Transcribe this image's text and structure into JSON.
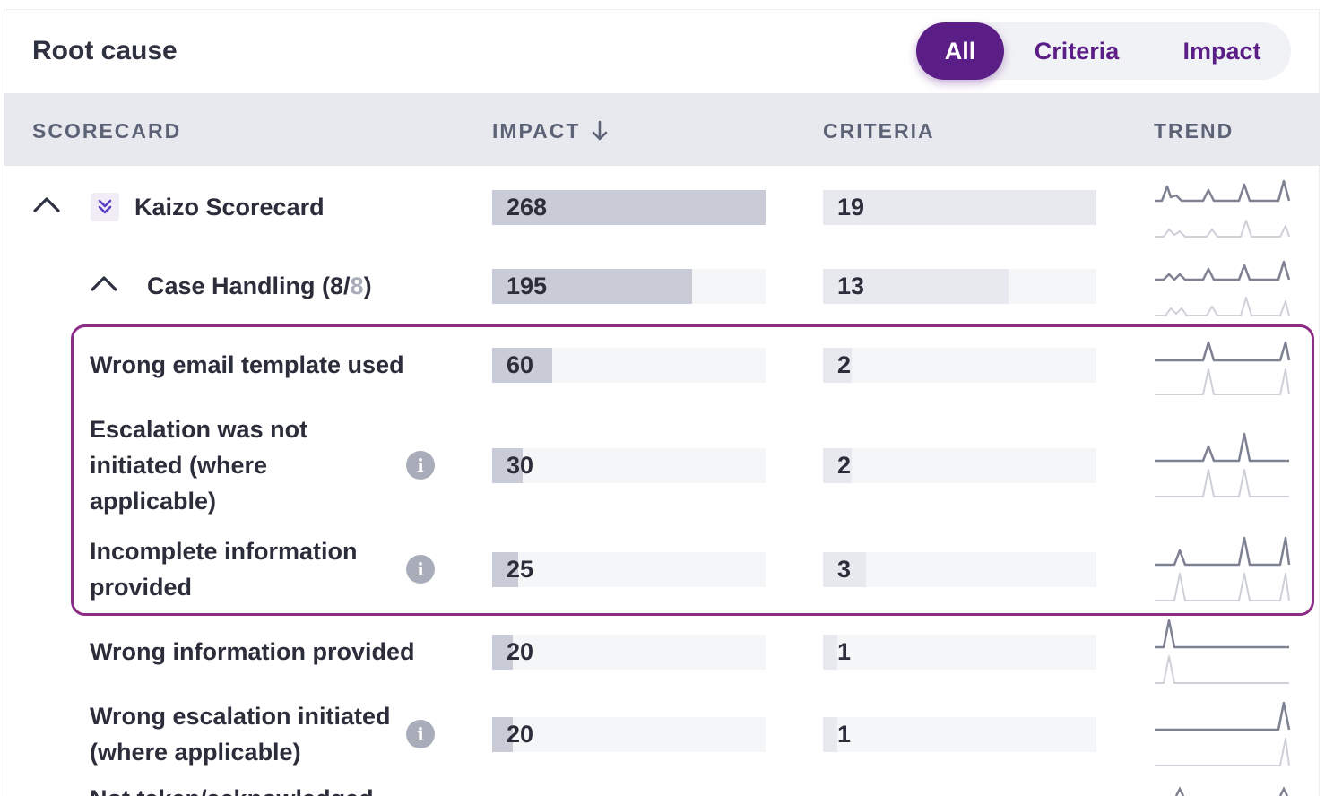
{
  "panel": {
    "title": "Root cause"
  },
  "filters": {
    "all": "All",
    "criteria": "Criteria",
    "impact": "Impact",
    "selected": "All"
  },
  "columns": {
    "scorecard": "SCORECARD",
    "impact": "IMPACT",
    "impact_sort_icon": "arrow-down-icon",
    "criteria": "CRITERIA",
    "trend": "TREND"
  },
  "colors": {
    "accent": "#5b1e86",
    "highlight_border": "#8c2c86",
    "impact_bar": "#c9ccd6",
    "criteria_bar": "#e8e9ee"
  },
  "scorecard": {
    "name": "Kaizo Scorecard",
    "impact": 268,
    "criteria": 19,
    "impact_fill": 1.0,
    "criteria_fill": 1.0
  },
  "category": {
    "name_prefix": "Case Handling (8/",
    "name_count": "8",
    "name_suffix": ")",
    "impact": 195,
    "criteria": 13,
    "impact_fill": 0.73,
    "criteria_fill": 0.68
  },
  "rows": [
    {
      "label": "Wrong email template used",
      "impact": 60,
      "criteria": 2,
      "impact_fill": 0.22,
      "criteria_fill": 0.105,
      "info": false
    },
    {
      "label_l1": "Escalation was not",
      "label_l2": "initiated (where",
      "label_l3": "applicable)",
      "impact": 30,
      "criteria": 2,
      "impact_fill": 0.11,
      "criteria_fill": 0.105,
      "info": true
    },
    {
      "label_l1": "Incomplete information",
      "label_l2": "provided",
      "impact": 25,
      "criteria": 3,
      "impact_fill": 0.095,
      "criteria_fill": 0.158,
      "info": true
    },
    {
      "label": "Wrong information provided",
      "impact": 20,
      "criteria": 1,
      "impact_fill": 0.075,
      "criteria_fill": 0.053,
      "info": false
    },
    {
      "label_l1": "Wrong escalation initiated",
      "label_l2": "(where applicable)",
      "impact": 20,
      "criteria": 1,
      "impact_fill": 0.075,
      "criteria_fill": 0.053,
      "info": true
    },
    {
      "label": "Not taken/acknowledged",
      "truncated": true
    }
  ]
}
